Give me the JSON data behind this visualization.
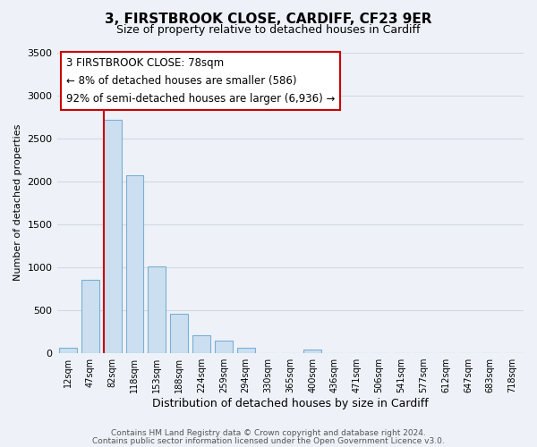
{
  "title": "3, FIRSTBROOK CLOSE, CARDIFF, CF23 9ER",
  "subtitle": "Size of property relative to detached houses in Cardiff",
  "xlabel": "Distribution of detached houses by size in Cardiff",
  "ylabel": "Number of detached properties",
  "bar_labels": [
    "12sqm",
    "47sqm",
    "82sqm",
    "118sqm",
    "153sqm",
    "188sqm",
    "224sqm",
    "259sqm",
    "294sqm",
    "330sqm",
    "365sqm",
    "400sqm",
    "436sqm",
    "471sqm",
    "506sqm",
    "541sqm",
    "577sqm",
    "612sqm",
    "647sqm",
    "683sqm",
    "718sqm"
  ],
  "bar_values": [
    60,
    850,
    2720,
    2070,
    1010,
    450,
    200,
    145,
    55,
    0,
    0,
    35,
    0,
    0,
    0,
    0,
    0,
    0,
    0,
    0,
    0
  ],
  "bar_color": "#ccdff0",
  "bar_edgecolor": "#7aafd4",
  "vline_color": "#cc0000",
  "annotation_lines": [
    "3 FIRSTBROOK CLOSE: 78sqm",
    "← 8% of detached houses are smaller (586)",
    "92% of semi-detached houses are larger (6,936) →"
  ],
  "annotation_box_facecolor": "#ffffff",
  "annotation_box_edgecolor": "#cc0000",
  "ylim": [
    0,
    3500
  ],
  "yticks": [
    0,
    500,
    1000,
    1500,
    2000,
    2500,
    3000,
    3500
  ],
  "footer1": "Contains HM Land Registry data © Crown copyright and database right 2024.",
  "footer2": "Contains public sector information licensed under the Open Government Licence v3.0.",
  "bg_color": "#eef2f8",
  "grid_color": "#d0d8e8",
  "title_fontsize": 11,
  "subtitle_fontsize": 9
}
